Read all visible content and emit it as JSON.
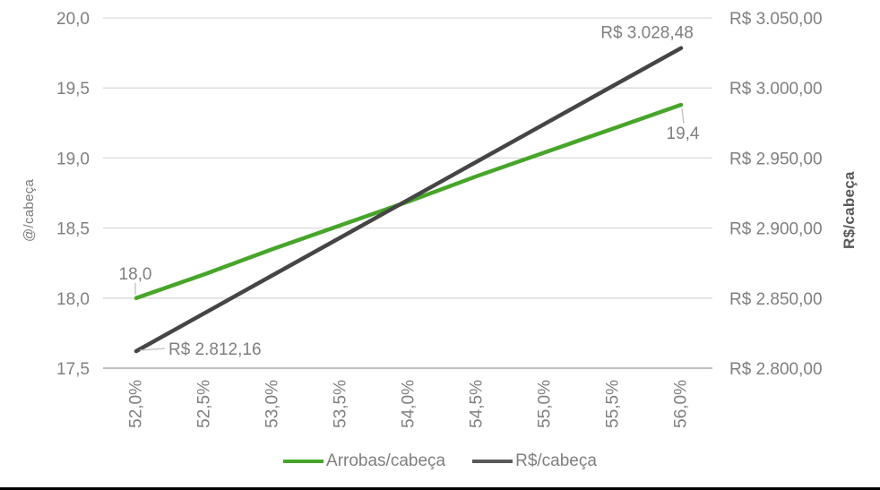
{
  "chart_data": {
    "type": "line",
    "title": "",
    "x": [
      52.0,
      52.5,
      53.0,
      53.5,
      54.0,
      54.5,
      55.0,
      55.5,
      56.0
    ],
    "x_tick_labels": [
      "52,0%",
      "52,5%",
      "53,0%",
      "53,5%",
      "54,0%",
      "54,5%",
      "55,0%",
      "55,5%",
      "56,0%"
    ],
    "series": [
      {
        "name": "Arrobas/cabeça",
        "axis": "left",
        "color": "#47A52A",
        "values": [
          18.0,
          18.17,
          18.35,
          18.52,
          18.69,
          18.87,
          19.04,
          19.21,
          19.38
        ]
      },
      {
        "name": "R$/cabeça",
        "axis": "right",
        "color": "#454545",
        "values": [
          2812.16,
          2839.2,
          2866.24,
          2893.28,
          2920.32,
          2947.36,
          2974.4,
          3001.44,
          3028.48
        ]
      }
    ],
    "left_axis": {
      "title": "@/cabeça",
      "min": 17.5,
      "max": 20.0,
      "tick_labels": [
        "20,0",
        "19,5",
        "19,0",
        "18,5",
        "18,0",
        "17,5"
      ]
    },
    "right_axis": {
      "title": "R$/cabeça",
      "min": 2800,
      "max": 3050,
      "tick_labels": [
        "R$ 3.050,00",
        "R$ 3.000,00",
        "R$ 2.950,00",
        "R$ 2.900,00",
        "R$ 2.850,00",
        "R$ 2.800,00"
      ]
    },
    "annotations": [
      {
        "series": 0,
        "index": 0,
        "text": "18,0",
        "placement": "above"
      },
      {
        "series": 0,
        "index": 8,
        "text": "19,4",
        "placement": "below"
      },
      {
        "series": 1,
        "index": 0,
        "text": "R$ 2.812,16",
        "placement": "right"
      },
      {
        "series": 1,
        "index": 8,
        "text": "R$ 3.028,48",
        "placement": "above-noleader"
      }
    ],
    "legend": {
      "position": "bottom",
      "entries": [
        {
          "label": "Arrobas/cabeça",
          "color": "#47A52A"
        },
        {
          "label": "R$/cabeça",
          "color": "#595959"
        }
      ]
    },
    "grid": "horizontal",
    "colors": {
      "gridline": "#D9D9D9",
      "axis_line": "#BFBFBF",
      "tick_text": "#7F7F7F",
      "data_label": "#7F7F7F",
      "leader": "#BFBFBF"
    }
  }
}
